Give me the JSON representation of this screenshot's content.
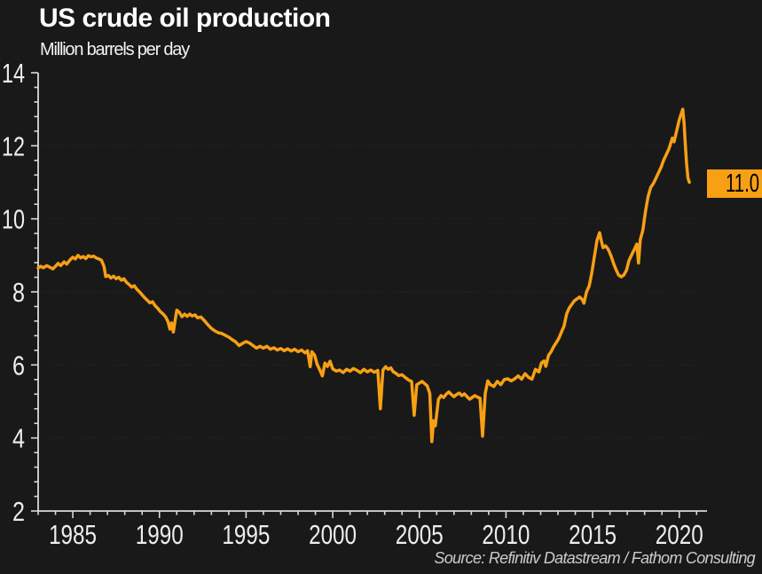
{
  "header": {
    "title": "US crude oil production",
    "subtitle": "Million barrels per day"
  },
  "footer": {
    "source": "Source: Refinitiv Datastream / Fathom Consulting"
  },
  "badge": {
    "value": "11.0"
  },
  "colors": {
    "background": "#191919",
    "line": "#F7A014",
    "badge_bg": "#F7A014",
    "badge_text": "#000000",
    "axis": "#D9D9D9",
    "tick_label": "#EDEDED",
    "grid": "#2D2D2D",
    "title_text": "#FFFFFF",
    "source_text": "#CCCCCC"
  },
  "chart_data": {
    "type": "line",
    "title": "US crude oil production",
    "ylabel": "Million barrels per day",
    "xlabel": "",
    "x_range": [
      1983,
      2021.6
    ],
    "y_range": [
      2,
      14
    ],
    "x_major_ticks": [
      1985,
      1990,
      1995,
      2000,
      2005,
      2010,
      2015,
      2020
    ],
    "x_tick_labels": [
      "1985",
      "1990",
      "1995",
      "2000",
      "2005",
      "2010",
      "2015",
      "2020"
    ],
    "x_minor_step": 1,
    "y_major_ticks": [
      2,
      4,
      6,
      8,
      10,
      12,
      14
    ],
    "y_tick_labels": [
      "2",
      "4",
      "6",
      "8",
      "10",
      "12",
      "14"
    ],
    "y_minor_step": 0.4,
    "gridlines_y": [
      4,
      6,
      8,
      10,
      12
    ],
    "grid": "faint dotted horizontal lines at major y values",
    "legend": "none",
    "annotations": [
      {
        "type": "last-value-badge",
        "text": "11.0",
        "value": 11.0,
        "position": "right edge, at end of line"
      }
    ],
    "series": [
      {
        "name": "US crude oil production (million barrels per day)",
        "color": "#F7A014",
        "points": [
          [
            1983.0,
            8.65
          ],
          [
            1983.15,
            8.7
          ],
          [
            1983.3,
            8.66
          ],
          [
            1983.5,
            8.72
          ],
          [
            1983.65,
            8.68
          ],
          [
            1983.85,
            8.63
          ],
          [
            1984.0,
            8.7
          ],
          [
            1984.15,
            8.78
          ],
          [
            1984.3,
            8.72
          ],
          [
            1984.5,
            8.82
          ],
          [
            1984.65,
            8.76
          ],
          [
            1984.85,
            8.88
          ],
          [
            1985.0,
            8.95
          ],
          [
            1985.15,
            8.9
          ],
          [
            1985.3,
            9.0
          ],
          [
            1985.45,
            8.93
          ],
          [
            1985.6,
            8.97
          ],
          [
            1985.75,
            8.91
          ],
          [
            1985.9,
            8.99
          ],
          [
            1986.05,
            8.96
          ],
          [
            1986.2,
            8.98
          ],
          [
            1986.35,
            8.93
          ],
          [
            1986.5,
            8.9
          ],
          [
            1986.65,
            8.87
          ],
          [
            1986.8,
            8.7
          ],
          [
            1986.9,
            8.42
          ],
          [
            1987.05,
            8.45
          ],
          [
            1987.2,
            8.38
          ],
          [
            1987.35,
            8.43
          ],
          [
            1987.5,
            8.36
          ],
          [
            1987.65,
            8.4
          ],
          [
            1987.8,
            8.32
          ],
          [
            1987.95,
            8.36
          ],
          [
            1988.1,
            8.26
          ],
          [
            1988.25,
            8.2
          ],
          [
            1988.4,
            8.13
          ],
          [
            1988.55,
            8.17
          ],
          [
            1988.7,
            8.07
          ],
          [
            1988.85,
            8.0
          ],
          [
            1989.0,
            7.92
          ],
          [
            1989.15,
            7.84
          ],
          [
            1989.3,
            7.77
          ],
          [
            1989.45,
            7.7
          ],
          [
            1989.6,
            7.73
          ],
          [
            1989.75,
            7.62
          ],
          [
            1989.9,
            7.55
          ],
          [
            1990.05,
            7.46
          ],
          [
            1990.2,
            7.4
          ],
          [
            1990.35,
            7.32
          ],
          [
            1990.5,
            7.18
          ],
          [
            1990.6,
            6.98
          ],
          [
            1990.7,
            7.15
          ],
          [
            1990.8,
            6.9
          ],
          [
            1990.9,
            7.2
          ],
          [
            1991.0,
            7.5
          ],
          [
            1991.15,
            7.44
          ],
          [
            1991.3,
            7.32
          ],
          [
            1991.45,
            7.39
          ],
          [
            1991.6,
            7.33
          ],
          [
            1991.75,
            7.39
          ],
          [
            1991.9,
            7.34
          ],
          [
            1992.05,
            7.37
          ],
          [
            1992.2,
            7.29
          ],
          [
            1992.4,
            7.31
          ],
          [
            1992.6,
            7.21
          ],
          [
            1992.8,
            7.1
          ],
          [
            1993.0,
            7.0
          ],
          [
            1993.2,
            6.93
          ],
          [
            1993.4,
            6.88
          ],
          [
            1993.6,
            6.86
          ],
          [
            1993.8,
            6.81
          ],
          [
            1994.0,
            6.76
          ],
          [
            1994.2,
            6.69
          ],
          [
            1994.4,
            6.63
          ],
          [
            1994.6,
            6.53
          ],
          [
            1994.8,
            6.59
          ],
          [
            1995.0,
            6.64
          ],
          [
            1995.2,
            6.6
          ],
          [
            1995.4,
            6.53
          ],
          [
            1995.6,
            6.46
          ],
          [
            1995.8,
            6.51
          ],
          [
            1996.0,
            6.46
          ],
          [
            1996.2,
            6.51
          ],
          [
            1996.4,
            6.43
          ],
          [
            1996.6,
            6.47
          ],
          [
            1996.8,
            6.41
          ],
          [
            1997.0,
            6.45
          ],
          [
            1997.2,
            6.39
          ],
          [
            1997.4,
            6.44
          ],
          [
            1997.6,
            6.38
          ],
          [
            1997.8,
            6.43
          ],
          [
            1998.0,
            6.36
          ],
          [
            1998.2,
            6.41
          ],
          [
            1998.4,
            6.33
          ],
          [
            1998.55,
            6.39
          ],
          [
            1998.7,
            5.95
          ],
          [
            1998.8,
            6.36
          ],
          [
            1998.95,
            6.27
          ],
          [
            1999.1,
            6.02
          ],
          [
            1999.25,
            5.87
          ],
          [
            1999.4,
            5.7
          ],
          [
            1999.55,
            6.05
          ],
          [
            1999.7,
            5.96
          ],
          [
            1999.85,
            6.1
          ],
          [
            2000.0,
            5.89
          ],
          [
            2000.2,
            5.83
          ],
          [
            2000.4,
            5.86
          ],
          [
            2000.6,
            5.79
          ],
          [
            2000.8,
            5.88
          ],
          [
            2001.0,
            5.83
          ],
          [
            2001.2,
            5.9
          ],
          [
            2001.4,
            5.85
          ],
          [
            2001.6,
            5.79
          ],
          [
            2001.8,
            5.88
          ],
          [
            2002.0,
            5.81
          ],
          [
            2002.2,
            5.86
          ],
          [
            2002.4,
            5.8
          ],
          [
            2002.6,
            5.85
          ],
          [
            2002.75,
            4.8
          ],
          [
            2002.9,
            5.86
          ],
          [
            2003.05,
            5.95
          ],
          [
            2003.2,
            5.88
          ],
          [
            2003.35,
            5.92
          ],
          [
            2003.5,
            5.81
          ],
          [
            2003.65,
            5.77
          ],
          [
            2003.8,
            5.71
          ],
          [
            2004.0,
            5.73
          ],
          [
            2004.2,
            5.65
          ],
          [
            2004.4,
            5.58
          ],
          [
            2004.55,
            5.55
          ],
          [
            2004.7,
            4.62
          ],
          [
            2004.85,
            5.46
          ],
          [
            2005.0,
            5.5
          ],
          [
            2005.15,
            5.55
          ],
          [
            2005.3,
            5.49
          ],
          [
            2005.45,
            5.43
          ],
          [
            2005.6,
            5.22
          ],
          [
            2005.72,
            3.9
          ],
          [
            2005.82,
            4.47
          ],
          [
            2005.92,
            4.33
          ],
          [
            2006.1,
            5.05
          ],
          [
            2006.25,
            5.16
          ],
          [
            2006.4,
            5.11
          ],
          [
            2006.55,
            5.2
          ],
          [
            2006.7,
            5.26
          ],
          [
            2006.85,
            5.19
          ],
          [
            2007.0,
            5.13
          ],
          [
            2007.15,
            5.19
          ],
          [
            2007.3,
            5.23
          ],
          [
            2007.45,
            5.16
          ],
          [
            2007.6,
            5.21
          ],
          [
            2007.75,
            5.13
          ],
          [
            2007.9,
            5.06
          ],
          [
            2008.05,
            5.11
          ],
          [
            2008.2,
            5.16
          ],
          [
            2008.35,
            5.12
          ],
          [
            2008.5,
            5.09
          ],
          [
            2008.65,
            4.05
          ],
          [
            2008.8,
            5.22
          ],
          [
            2008.95,
            5.56
          ],
          [
            2009.1,
            5.46
          ],
          [
            2009.3,
            5.41
          ],
          [
            2009.5,
            5.55
          ],
          [
            2009.7,
            5.46
          ],
          [
            2009.9,
            5.6
          ],
          [
            2010.1,
            5.62
          ],
          [
            2010.3,
            5.56
          ],
          [
            2010.5,
            5.62
          ],
          [
            2010.7,
            5.7
          ],
          [
            2010.9,
            5.61
          ],
          [
            2011.1,
            5.76
          ],
          [
            2011.3,
            5.66
          ],
          [
            2011.5,
            5.61
          ],
          [
            2011.7,
            5.88
          ],
          [
            2011.9,
            5.81
          ],
          [
            2012.05,
            6.06
          ],
          [
            2012.2,
            6.11
          ],
          [
            2012.3,
            5.96
          ],
          [
            2012.45,
            6.26
          ],
          [
            2012.6,
            6.36
          ],
          [
            2012.75,
            6.5
          ],
          [
            2012.9,
            6.61
          ],
          [
            2013.05,
            6.73
          ],
          [
            2013.2,
            6.9
          ],
          [
            2013.35,
            7.06
          ],
          [
            2013.5,
            7.4
          ],
          [
            2013.65,
            7.56
          ],
          [
            2013.8,
            7.66
          ],
          [
            2013.95,
            7.76
          ],
          [
            2014.1,
            7.81
          ],
          [
            2014.25,
            7.86
          ],
          [
            2014.4,
            7.79
          ],
          [
            2014.5,
            7.69
          ],
          [
            2014.65,
            8.0
          ],
          [
            2014.8,
            8.16
          ],
          [
            2014.95,
            8.52
          ],
          [
            2015.1,
            8.96
          ],
          [
            2015.25,
            9.41
          ],
          [
            2015.4,
            9.62
          ],
          [
            2015.5,
            9.41
          ],
          [
            2015.6,
            9.21
          ],
          [
            2015.75,
            9.26
          ],
          [
            2015.9,
            9.16
          ],
          [
            2016.05,
            9.0
          ],
          [
            2016.2,
            8.79
          ],
          [
            2016.35,
            8.61
          ],
          [
            2016.5,
            8.46
          ],
          [
            2016.65,
            8.41
          ],
          [
            2016.8,
            8.46
          ],
          [
            2016.95,
            8.59
          ],
          [
            2017.1,
            8.86
          ],
          [
            2017.25,
            9.01
          ],
          [
            2017.4,
            9.16
          ],
          [
            2017.55,
            9.31
          ],
          [
            2017.65,
            8.79
          ],
          [
            2017.75,
            9.43
          ],
          [
            2017.9,
            9.69
          ],
          [
            2018.05,
            10.21
          ],
          [
            2018.2,
            10.61
          ],
          [
            2018.35,
            10.86
          ],
          [
            2018.5,
            10.96
          ],
          [
            2018.65,
            11.11
          ],
          [
            2018.8,
            11.26
          ],
          [
            2018.95,
            11.41
          ],
          [
            2019.1,
            11.61
          ],
          [
            2019.25,
            11.76
          ],
          [
            2019.4,
            11.91
          ],
          [
            2019.5,
            12.06
          ],
          [
            2019.6,
            12.21
          ],
          [
            2019.7,
            12.11
          ],
          [
            2019.8,
            12.31
          ],
          [
            2019.9,
            12.51
          ],
          [
            2020.0,
            12.71
          ],
          [
            2020.1,
            12.86
          ],
          [
            2020.2,
            13.0
          ],
          [
            2020.28,
            12.61
          ],
          [
            2020.35,
            12.01
          ],
          [
            2020.42,
            11.51
          ],
          [
            2020.5,
            11.12
          ],
          [
            2020.58,
            11.0
          ]
        ]
      }
    ]
  }
}
